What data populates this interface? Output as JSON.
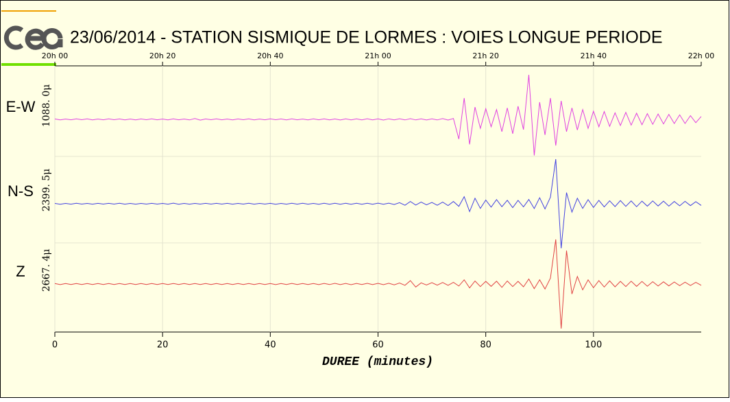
{
  "chart_data": {
    "type": "seismogram",
    "title": "23/06/2014  -  STATION SISMIQUE DE LORMES : VOIES LONGUE PERIODE",
    "x_label": "DUREE (minutes)",
    "xlim": [
      0,
      120
    ],
    "xticks": [
      0,
      20,
      40,
      60,
      80,
      100
    ],
    "time_ticks": [
      {
        "value": 0,
        "label": "20h 00"
      },
      {
        "value": 20,
        "label": "20h 20"
      },
      {
        "value": 40,
        "label": "20h 40"
      },
      {
        "value": 60,
        "label": "21h 00"
      },
      {
        "value": 80,
        "label": "21h 20"
      },
      {
        "value": 100,
        "label": "21h 40"
      },
      {
        "value": 120,
        "label": "22h 00"
      }
    ],
    "grid": true,
    "x": [
      0,
      1,
      2,
      3,
      4,
      5,
      6,
      7,
      8,
      9,
      10,
      11,
      12,
      13,
      14,
      15,
      16,
      17,
      18,
      19,
      20,
      21,
      22,
      23,
      24,
      25,
      26,
      27,
      28,
      29,
      30,
      31,
      32,
      33,
      34,
      35,
      36,
      37,
      38,
      39,
      40,
      41,
      42,
      43,
      44,
      45,
      46,
      47,
      48,
      49,
      50,
      51,
      52,
      53,
      54,
      55,
      56,
      57,
      58,
      59,
      60,
      61,
      62,
      63,
      64,
      65,
      66,
      67,
      68,
      69,
      70,
      71,
      72,
      73,
      74,
      75,
      76,
      77,
      78,
      79,
      80,
      81,
      82,
      83,
      84,
      85,
      86,
      87,
      88,
      89,
      90,
      91,
      92,
      93,
      94,
      95,
      96,
      97,
      98,
      99,
      100,
      101,
      102,
      103,
      104,
      105,
      106,
      107,
      108,
      109,
      110,
      111,
      112,
      113,
      114,
      115,
      116,
      117,
      118,
      119,
      120
    ],
    "series": [
      {
        "name": "E-W",
        "scale": 1088.0,
        "scale_label": "1088. 0μ",
        "color": "#e040e0",
        "values": [
          10,
          -12,
          8,
          -10,
          14,
          -9,
          11,
          -13,
          9,
          -10,
          12,
          -8,
          10,
          -11,
          9,
          -12,
          10,
          -9,
          13,
          -10,
          9,
          -11,
          12,
          -10,
          8,
          -13,
          20,
          -18,
          10,
          -9,
          11,
          -10,
          9,
          -12,
          10,
          -8,
          12,
          -11,
          9,
          -10,
          13,
          -9,
          10,
          -12,
          11,
          -10,
          9,
          -13,
          12,
          -10,
          14,
          -12,
          10,
          -15,
          13,
          -11,
          12,
          -14,
          15,
          -12,
          13,
          -16,
          14,
          -12,
          15,
          -13,
          16,
          -14,
          12,
          -15,
          14,
          -13,
          18,
          -16,
          20,
          -480,
          520,
          -610,
          300,
          -220,
          260,
          -180,
          240,
          -300,
          280,
          -350,
          320,
          -250,
          1088,
          -880,
          420,
          -380,
          520,
          -640,
          450,
          -300,
          280,
          -260,
          240,
          -220,
          200,
          -180,
          190,
          -170,
          160,
          -150,
          170,
          -140,
          150,
          -130,
          140,
          -120,
          130,
          -110,
          120,
          -100,
          110,
          -100,
          90,
          -80,
          70
        ]
      },
      {
        "name": "N-S",
        "scale": 2399.5,
        "scale_label": "2399. 5μ",
        "color": "#4040e0",
        "values": [
          20,
          -25,
          18,
          -22,
          24,
          -20,
          19,
          -23,
          21,
          -18,
          22,
          -20,
          24,
          -21,
          19,
          -22,
          20,
          -18,
          23,
          -20,
          19,
          -21,
          35,
          -30,
          18,
          -23,
          20,
          -19,
          22,
          -20,
          21,
          -19,
          23,
          -22,
          20,
          -18,
          24,
          -21,
          19,
          -20,
          22,
          -25,
          20,
          -23,
          26,
          -21,
          24,
          -22,
          20,
          -25,
          28,
          -24,
          30,
          -26,
          25,
          -29,
          27,
          -24,
          30,
          -28,
          32,
          -30,
          35,
          -40,
          60,
          -80,
          120,
          -70,
          90,
          -60,
          70,
          -80,
          90,
          -100,
          120,
          -140,
          380,
          -420,
          300,
          -250,
          200,
          -180,
          220,
          -160,
          190,
          -210,
          180,
          -170,
          230,
          -260,
          320,
          -280,
          350,
          2399,
          -2399,
          600,
          -450,
          300,
          -250,
          220,
          -200,
          180,
          -170,
          160,
          -150,
          170,
          -140,
          150,
          -160,
          140,
          -130,
          150,
          -120,
          140,
          -130,
          120,
          -110,
          130,
          -100,
          110,
          -90
        ]
      },
      {
        "name": "Z",
        "scale": 2667.4,
        "scale_label": "2667. 4μ",
        "color": "#e04040",
        "values": [
          30,
          -35,
          28,
          -32,
          34,
          -30,
          29,
          -33,
          31,
          -28,
          32,
          -30,
          34,
          -31,
          29,
          -32,
          30,
          -28,
          33,
          -30,
          29,
          -31,
          32,
          -30,
          28,
          -33,
          30,
          -29,
          32,
          -30,
          31,
          -29,
          33,
          -32,
          30,
          -28,
          34,
          -31,
          29,
          -30,
          32,
          -35,
          30,
          -33,
          36,
          -31,
          34,
          -32,
          30,
          -35,
          38,
          -34,
          40,
          -36,
          35,
          -39,
          37,
          -34,
          40,
          -38,
          42,
          -40,
          45,
          -50,
          60,
          -80,
          200,
          -180,
          70,
          -60,
          80,
          -70,
          90,
          -80,
          100,
          -120,
          250,
          -230,
          180,
          -150,
          160,
          -140,
          170,
          -200,
          180,
          -150,
          160,
          -170,
          300,
          -280,
          250,
          -300,
          350,
          2667,
          -2667,
          2000,
          -600,
          450,
          -350,
          250,
          -220,
          200,
          -180,
          190,
          -170,
          160,
          -150,
          170,
          -140,
          150,
          -130,
          140,
          -120,
          130,
          -110,
          120,
          -100,
          110,
          -90,
          100,
          -80
        ]
      }
    ]
  }
}
